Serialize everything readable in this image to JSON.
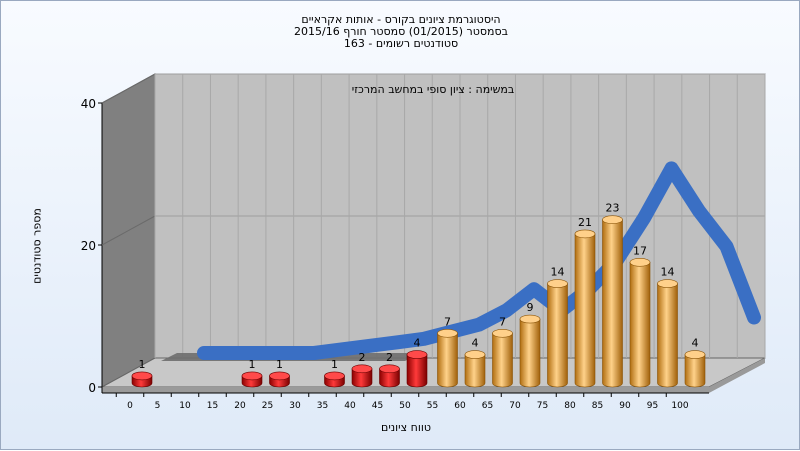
{
  "title_lines": [
    "היסטוגרמת ציונים בקורס - אותות אקראיים",
    "בסמסטר  (01/2015)  סמסטר חורף 2015/16",
    "163 - סטודנטים רשומים"
  ],
  "colors": {
    "low_bar": "#d81414",
    "high_bar": "#f0a830",
    "curve": "#3a6fc4",
    "wall": "#c0c0c0",
    "side_wall": "#808080"
  },
  "chart_data": {
    "type": "bar",
    "title": "היסטוגרמת ציונים בקורס - אותות אקראיים",
    "annotation": "במשימה : ציון סופי במחשב המרכזי",
    "xlabel": "טווח ציונים",
    "ylabel": "מספר סטודנטים",
    "ylim": [
      0,
      40
    ],
    "yticks": [
      0,
      20,
      40
    ],
    "x_tick_labels": [
      "0",
      "5",
      "10",
      "15",
      "20",
      "25",
      "30",
      "35",
      "40",
      "45",
      "50",
      "55",
      "60",
      "65",
      "70",
      "75",
      "80",
      "85",
      "90",
      "95",
      "100"
    ],
    "categories": [
      "0",
      "5",
      "10",
      "15",
      "20",
      "25",
      "30",
      "35",
      "40",
      "45",
      "50",
      "55",
      "60",
      "65",
      "70",
      "75",
      "80",
      "85",
      "90",
      "95",
      "100"
    ],
    "values": [
      1,
      0,
      0,
      0,
      1,
      1,
      0,
      1,
      2,
      2,
      4,
      7,
      4,
      7,
      9,
      14,
      21,
      23,
      17,
      14,
      4
    ],
    "pass_threshold_index": 11,
    "curve": [
      0,
      0,
      0,
      0,
      0,
      0.5,
      1,
      1.5,
      2,
      3,
      4,
      6,
      9,
      6,
      9,
      13,
      19,
      26,
      20,
      15,
      5
    ],
    "grid": true
  }
}
